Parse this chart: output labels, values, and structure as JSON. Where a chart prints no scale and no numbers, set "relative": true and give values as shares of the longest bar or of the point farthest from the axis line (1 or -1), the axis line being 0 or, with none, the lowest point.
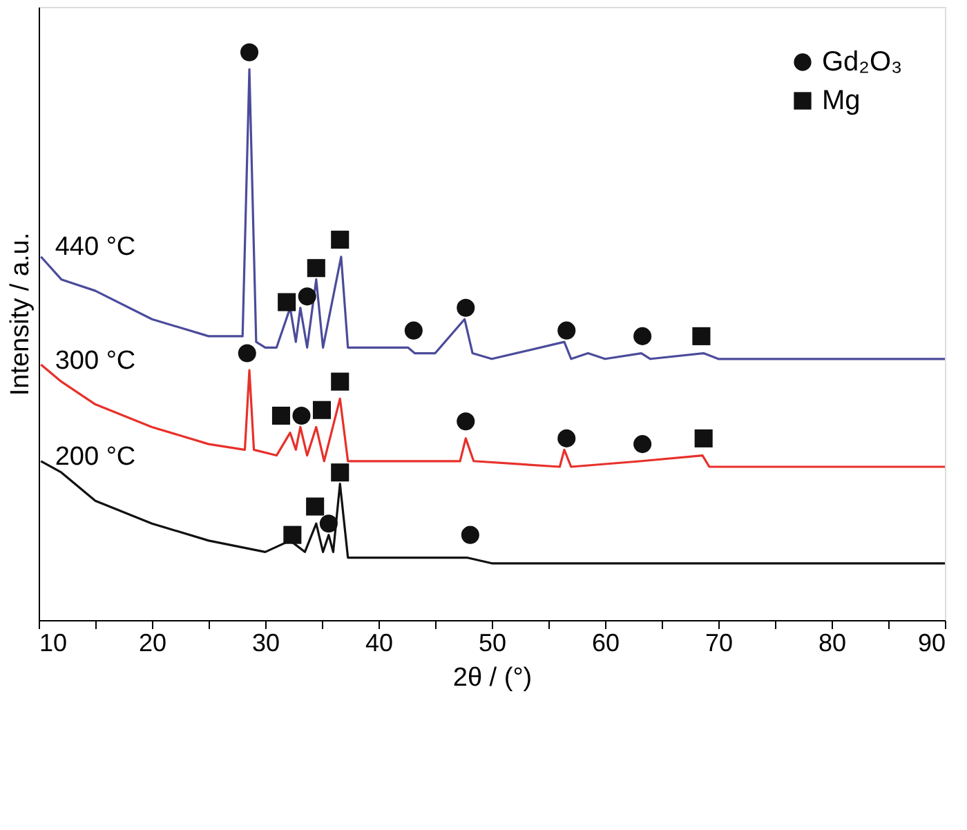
{
  "chart_data": {
    "type": "line",
    "relative": true,
    "xlabel": "2θ / (°)",
    "ylabel": "Intensity / a.u.",
    "xlim": [
      10,
      90
    ],
    "xticks": [
      10,
      {
        "value": 15,
        "label": null
      },
      20,
      {
        "value": 25,
        "label": null
      },
      30,
      {
        "value": 35,
        "label": null
      },
      40,
      {
        "value": 45,
        "label": null
      },
      50,
      {
        "value": 55,
        "label": null
      },
      60,
      {
        "value": 65,
        "label": null
      },
      70,
      {
        "value": 75,
        "label": null
      },
      80,
      {
        "value": 85,
        "label": null
      },
      90
    ],
    "grid": false,
    "legend": "top right",
    "line_style": "solid",
    "series": [
      {
        "name": "440 °C",
        "color": "#4b4b9b",
        "x": [
          10.2,
          12,
          15,
          20,
          25,
          28,
          28.6,
          29.2,
          30,
          31,
          32.2,
          32.7,
          33.1,
          33.7,
          34.5,
          35.1,
          36.7,
          37.3,
          39,
          42.6,
          43.2,
          45,
          47.6,
          48.3,
          50,
          56.4,
          57,
          58.5,
          60,
          63.2,
          64,
          68.7,
          70,
          80,
          90
        ],
        "values": [
          0.64,
          0.6,
          0.58,
          0.53,
          0.5,
          0.5,
          0.97,
          0.49,
          0.48,
          0.48,
          0.55,
          0.49,
          0.55,
          0.48,
          0.6,
          0.48,
          0.64,
          0.48,
          0.48,
          0.48,
          0.47,
          0.47,
          0.53,
          0.47,
          0.46,
          0.49,
          0.46,
          0.47,
          0.46,
          0.47,
          0.46,
          0.47,
          0.46,
          0.46,
          0.46
        ]
      },
      {
        "name": "300 °C",
        "color": "#e8302a",
        "x": [
          10.2,
          12,
          15,
          20,
          25,
          28.2,
          28.6,
          29,
          31,
          32.2,
          32.7,
          33.1,
          33.7,
          34.5,
          35.2,
          36.6,
          37.3,
          40,
          47.2,
          47.7,
          48.4,
          56,
          56.4,
          57,
          63.2,
          68.6,
          69.2,
          90
        ],
        "values": [
          0.45,
          0.42,
          0.38,
          0.34,
          0.31,
          0.3,
          0.44,
          0.3,
          0.29,
          0.33,
          0.3,
          0.34,
          0.29,
          0.34,
          0.28,
          0.39,
          0.28,
          0.28,
          0.28,
          0.32,
          0.28,
          0.27,
          0.3,
          0.27,
          0.28,
          0.29,
          0.27,
          0.27
        ]
      },
      {
        "name": "200 °C",
        "color": "#111111",
        "x": [
          10.2,
          12,
          15,
          20,
          25,
          30,
          32.2,
          33.5,
          34.5,
          35.1,
          35.6,
          36,
          36.6,
          37.3,
          40,
          47.8,
          50,
          90
        ],
        "values": [
          0.28,
          0.26,
          0.21,
          0.17,
          0.14,
          0.12,
          0.14,
          0.12,
          0.17,
          0.12,
          0.15,
          0.12,
          0.24,
          0.11,
          0.11,
          0.11,
          0.1,
          0.1
        ]
      },
      {
        "name": "Gd₂O₃",
        "type": "scatter",
        "marker": "circle",
        "color": "#111111",
        "x": [
          28.6,
          33.7,
          43.1,
          47.7,
          56.6,
          63.3,
          28.4,
          33.2,
          47.7,
          56.6,
          63.3,
          35.6,
          48.1
        ],
        "values": [
          1.0,
          0.57,
          0.51,
          0.55,
          0.51,
          0.5,
          0.47,
          0.36,
          0.35,
          0.32,
          0.31,
          0.17,
          0.15
        ]
      },
      {
        "name": "Mg",
        "type": "scatter",
        "marker": "square",
        "color": "#111111",
        "x": [
          31.9,
          34.5,
          36.6,
          68.5,
          31.4,
          35.0,
          36.6,
          68.7,
          32.4,
          34.4,
          36.6
        ],
        "values": [
          0.56,
          0.62,
          0.67,
          0.5,
          0.36,
          0.37,
          0.42,
          0.32,
          0.15,
          0.2,
          0.26
        ]
      }
    ]
  }
}
